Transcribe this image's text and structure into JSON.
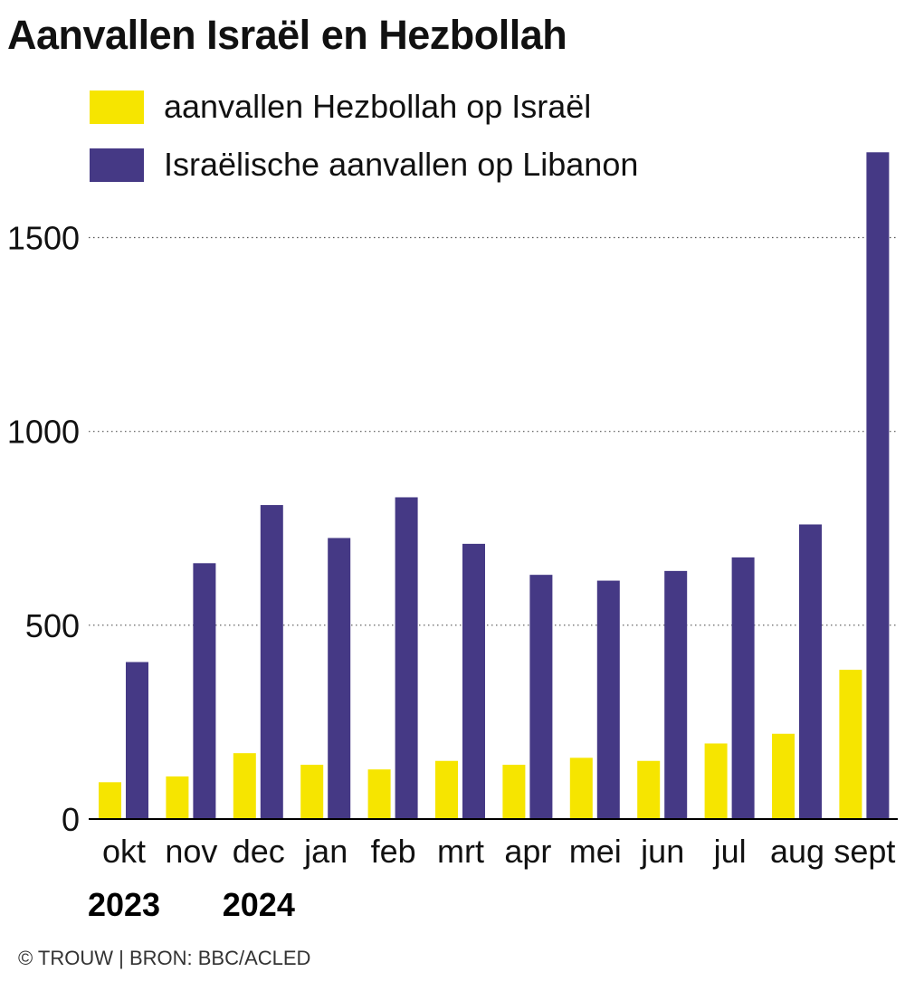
{
  "title": "Aanvallen Israël en Hezbollah",
  "source": "© TROUW | BRON: BBC/ACLED",
  "colors": {
    "hezbollah": "#f6e500",
    "israel": "#453985",
    "grid": "#555555",
    "axis": "#000000"
  },
  "legend": [
    {
      "label": "aanvallen Hezbollah op Israël",
      "color": "#f6e500"
    },
    {
      "label": "Israëlische aanvallen op Libanon",
      "color": "#453985"
    }
  ],
  "chart_data": {
    "type": "bar",
    "categories": [
      "okt",
      "nov",
      "dec",
      "jan",
      "feb",
      "mrt",
      "apr",
      "mei",
      "jun",
      "jul",
      "aug",
      "sept"
    ],
    "year_labels": [
      {
        "label": "2023",
        "category": "okt"
      },
      {
        "label": "2024",
        "category": "dec"
      }
    ],
    "series": [
      {
        "name": "aanvallen Hezbollah op Israël",
        "color": "#f6e500",
        "values": [
          95,
          110,
          170,
          140,
          128,
          150,
          140,
          158,
          150,
          195,
          220,
          385
        ]
      },
      {
        "name": "Israëlische aanvallen op Libanon",
        "color": "#453985",
        "values": [
          405,
          660,
          810,
          725,
          830,
          710,
          630,
          615,
          640,
          675,
          760,
          1720
        ]
      }
    ],
    "ylim": [
      0,
      1800
    ],
    "yticks": [
      0,
      500,
      1000,
      1500
    ],
    "grid": true
  }
}
